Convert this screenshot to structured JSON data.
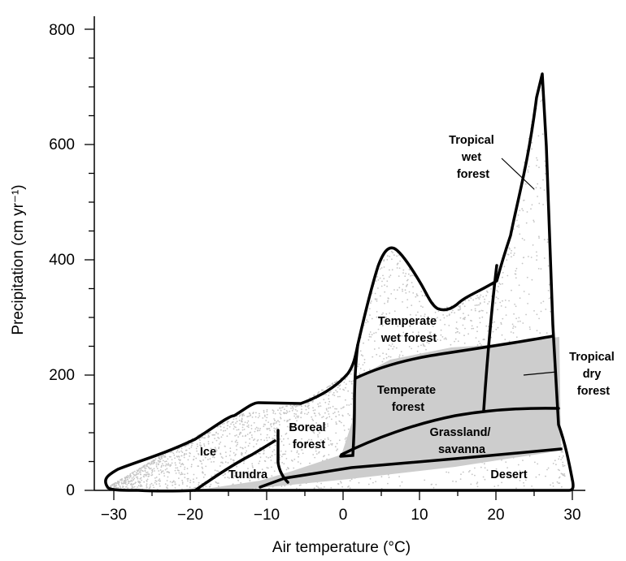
{
  "axes": {
    "x_title": "Air temperature (°C)",
    "y_title": "Precipitation (cm yr⁻¹)",
    "x_ticks": [
      "−30",
      "−20",
      "−10",
      "0",
      "10",
      "20",
      "30"
    ],
    "y_ticks": [
      "0",
      "200",
      "400",
      "600",
      "800"
    ],
    "x_range": [
      -30,
      30
    ],
    "y_range": [
      0,
      800
    ]
  },
  "biomes": {
    "tropical_wet_forest": [
      "Tropical",
      "wet",
      "forest"
    ],
    "tropical_dry_forest": [
      "Tropical",
      "dry",
      "forest"
    ],
    "temperate_wet_forest": [
      "Temperate",
      "wet forest"
    ],
    "temperate_forest": [
      "Temperate",
      "forest"
    ],
    "boreal_forest": [
      "Boreal",
      "forest"
    ],
    "grassland_savanna": [
      "Grassland/",
      "savanna"
    ],
    "ice": "Ice",
    "tundra": "Tundra",
    "desert": "Desert"
  },
  "colors": {
    "shaded_region": "#cdcdcd",
    "scatter_points": "#c4c4c4",
    "outline": "#000000"
  }
}
